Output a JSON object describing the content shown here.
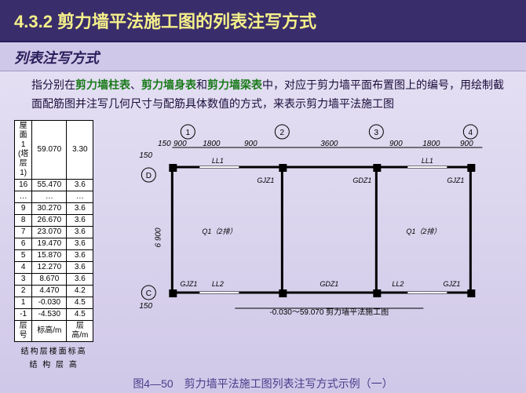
{
  "title": "4.3.2 剪力墙平法施工图的列表注写方式",
  "subtitle": "列表注写方式",
  "paragraph": {
    "prefix": "指分别在",
    "hl1": "剪力墙柱表",
    "sep1": "、",
    "hl2": "剪力墙身表",
    "sep2": "和",
    "hl3": "剪力墙梁表",
    "suffix": "中，对应于剪力墙平面布置图上的编号，用绘制截面配筋图并注写几何尺寸与配筋具体数值的方式，来表示剪力墙平法施工图"
  },
  "table": {
    "header": {
      "c1": "屋面1\n(塔层1)",
      "c2": "59.070",
      "c3": "3.30"
    },
    "rows": [
      {
        "f": "16",
        "h": "55.470",
        "s": "3.6"
      },
      {
        "f": "…",
        "h": "…",
        "s": "…"
      },
      {
        "f": "9",
        "h": "30.270",
        "s": "3.6"
      },
      {
        "f": "8",
        "h": "26.670",
        "s": "3.6"
      },
      {
        "f": "7",
        "h": "23.070",
        "s": "3.6"
      },
      {
        "f": "6",
        "h": "19.470",
        "s": "3.6"
      },
      {
        "f": "5",
        "h": "15.870",
        "s": "3.6"
      },
      {
        "f": "4",
        "h": "12.270",
        "s": "3.6"
      },
      {
        "f": "3",
        "h": "8.670",
        "s": "3.6"
      },
      {
        "f": "2",
        "h": "4.470",
        "s": "4.2"
      },
      {
        "f": "1",
        "h": "-0.030",
        "s": "4.5"
      },
      {
        "f": "-1",
        "h": "-4.530",
        "s": "4.5"
      }
    ],
    "footer": {
      "c1": "层号",
      "c2": "标高/m",
      "c3": "层高/m"
    },
    "caption1": "结构层楼面标高",
    "caption2": "结 构 层 高"
  },
  "plan": {
    "axes": {
      "a1": "1",
      "a2": "2",
      "a3": "3",
      "a4": "4",
      "d": "D",
      "c": "C"
    },
    "dims": {
      "d1": "900",
      "d2": "1800",
      "d3": "900",
      "d4": "3600",
      "d5": "900",
      "d6": "1800",
      "d7": "900",
      "e1": "150",
      "e2": "150",
      "h": "6 900",
      "v1": "150",
      "v2": "150"
    },
    "labels": {
      "ll1": "LL1",
      "ll1b": "LL1",
      "ll2": "LL2",
      "ll2b": "LL2",
      "gjz1a": "GJZ1",
      "gjz1b": "GJZ1",
      "gjz1c": "GJZ1",
      "gjz1d": "GJZ1",
      "gdz1a": "GDZ1",
      "gdz1b": "GDZ1",
      "gdz1c": "GDZ1",
      "gdz1d": "GDZ1",
      "q1a": "Q1（2排）",
      "q1b": "Q1（2排）"
    },
    "note": "-0.030～59.070 剪力墙平法施工图"
  },
  "caption": "图4—50　剪力墙平法施工图列表注写方式示例（一）",
  "colors": {
    "title_bg": "#3a2d6b",
    "title_fg": "#f5f08a",
    "hl": "#1a7a1a",
    "line": "#000"
  }
}
